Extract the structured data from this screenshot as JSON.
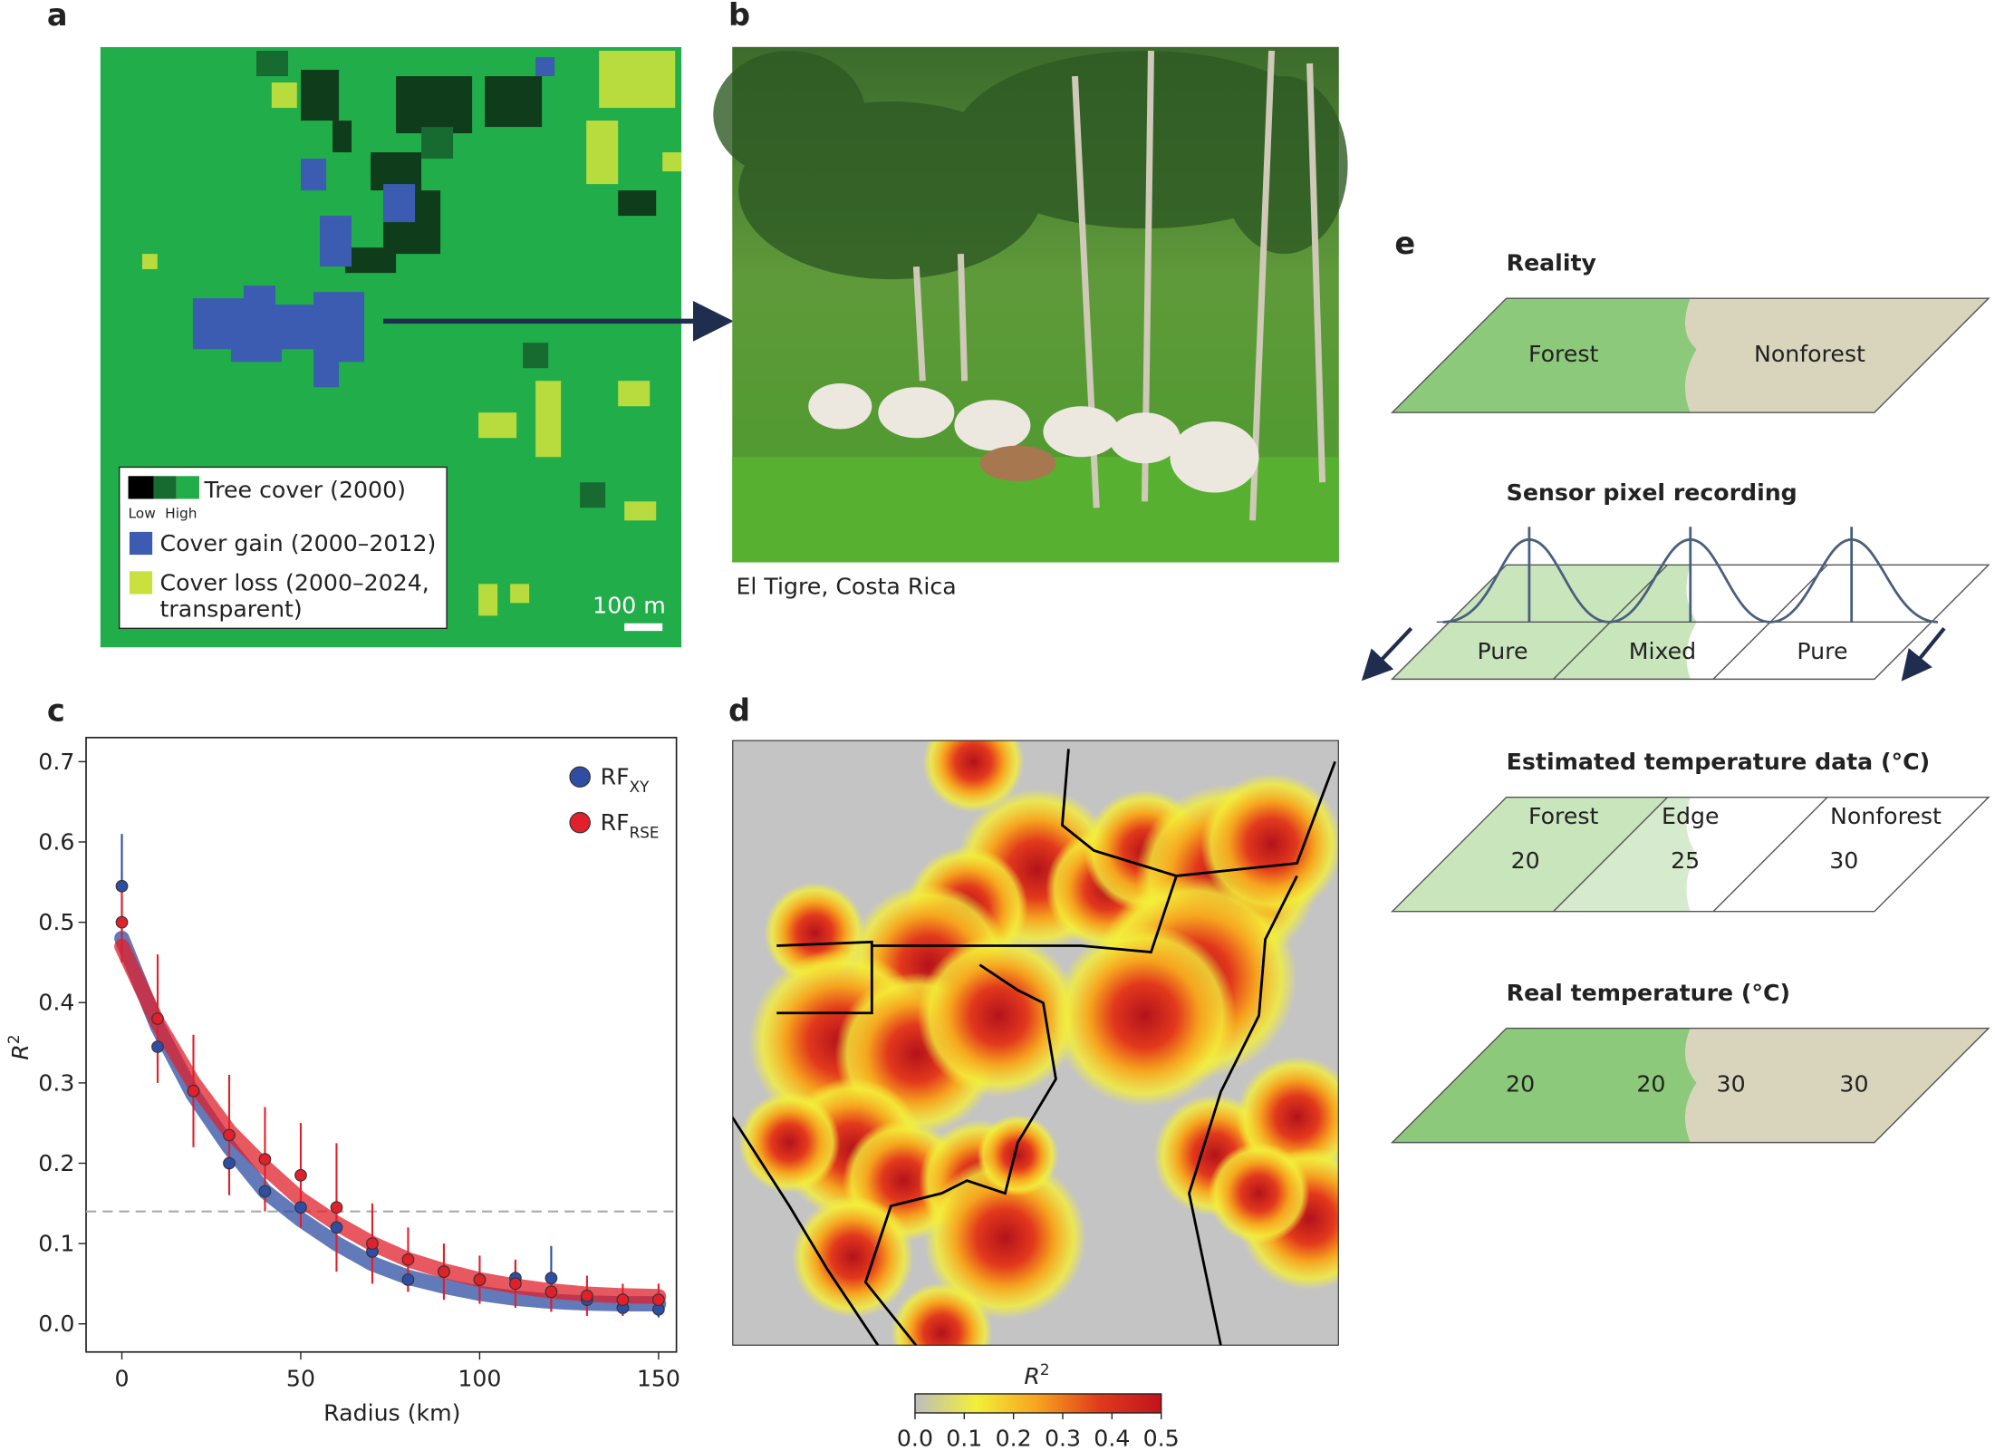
{
  "panel_labels": [
    "a",
    "b",
    "c",
    "d",
    "e"
  ],
  "panel_a": {
    "legend": {
      "tree_cover": "Tree cover (2000)",
      "low": "Low",
      "high": "High",
      "gain": "Cover gain (2000–2012)",
      "loss": [
        "Cover loss (2000–2024,",
        "transparent)"
      ]
    },
    "scale_bar": "100 m"
  },
  "panel_b": {
    "caption": "El Tigre, Costa Rica"
  },
  "chart_data": {
    "type": "scatter",
    "xlabel": "Radius (km)",
    "ylabel": {
      "text": "R",
      "superscript": "2"
    },
    "x": [
      0,
      10,
      20,
      30,
      40,
      50,
      60,
      70,
      80,
      90,
      100,
      110,
      120,
      130,
      140,
      150
    ],
    "series": [
      {
        "name": "RF",
        "subscript": "XY",
        "color": "#2f4ea3",
        "values": [
          0.545,
          0.345,
          0.29,
          0.2,
          0.165,
          0.145,
          0.12,
          0.09,
          0.055,
          0.065,
          0.055,
          0.057,
          0.057,
          0.03,
          0.02,
          0.018
        ],
        "errors": [
          0.065,
          0.02,
          0.02,
          0.015,
          0.015,
          0.015,
          0.02,
          0.015,
          0.015,
          0.01,
          0.01,
          0.02,
          0.04,
          0.01,
          0.01,
          0.01
        ],
        "fit": [
          0.48,
          0.37,
          0.285,
          0.22,
          0.165,
          0.13,
          0.1,
          0.075,
          0.058,
          0.047,
          0.038,
          0.032,
          0.028,
          0.026,
          0.025,
          0.025
        ]
      },
      {
        "name": "RF",
        "subscript": "RSE",
        "color": "#e0202b",
        "values": [
          0.5,
          0.38,
          0.29,
          0.235,
          0.205,
          0.185,
          0.145,
          0.1,
          0.08,
          0.065,
          0.055,
          0.05,
          0.04,
          0.035,
          0.03,
          0.03
        ],
        "errors": [
          0.05,
          0.08,
          0.07,
          0.075,
          0.065,
          0.065,
          0.08,
          0.05,
          0.04,
          0.035,
          0.03,
          0.03,
          0.025,
          0.025,
          0.02,
          0.02
        ],
        "fit": [
          0.47,
          0.375,
          0.3,
          0.24,
          0.195,
          0.155,
          0.125,
          0.1,
          0.08,
          0.066,
          0.055,
          0.047,
          0.041,
          0.037,
          0.035,
          0.034
        ]
      }
    ],
    "xlim": [
      -10,
      155
    ],
    "ylim": [
      -0.035,
      0.73
    ],
    "xticks": [
      0,
      50,
      100,
      150
    ],
    "yticks": [
      {
        "value": 0,
        "label": "0.0"
      },
      {
        "value": 0.1,
        "label": "0.1"
      },
      {
        "value": 0.2,
        "label": "0.2"
      },
      {
        "value": 0.3,
        "label": "0.3"
      },
      {
        "value": 0.4,
        "label": "0.4"
      },
      {
        "value": 0.5,
        "label": "0.5"
      },
      {
        "value": 0.6,
        "label": "0.6"
      },
      {
        "value": 0.7,
        "label": "0.7"
      }
    ],
    "reference_line": 0.14,
    "legend": "upper right"
  },
  "panel_d": {
    "colorbar": {
      "label": "R",
      "superscript": "2",
      "lim": [
        0,
        0.5
      ],
      "colors": [
        "#bdbdbd",
        "#f3ef3a",
        "#f6a21e",
        "#e03a1c",
        "#c0141c"
      ],
      "ticks": [
        {
          "value": 0,
          "label": "0.0"
        },
        {
          "value": 0.1,
          "label": "0.1"
        },
        {
          "value": 0.2,
          "label": "0.2"
        },
        {
          "value": 0.3,
          "label": "0.3"
        },
        {
          "value": 0.4,
          "label": "0.4"
        },
        {
          "value": 0.5,
          "label": "0.5"
        }
      ]
    }
  },
  "panel_e": {
    "reality": {
      "title": "Reality",
      "forest": "Forest",
      "nonforest": "Nonforest"
    },
    "sensor": {
      "title": "Sensor pixel recording",
      "pixels": [
        "Pure",
        "Mixed",
        "Pure"
      ]
    },
    "estimated": {
      "title": "Estimated temperature data (°C)",
      "zones": [
        "Forest",
        "Edge",
        "Nonforest"
      ],
      "values": [
        20,
        25,
        30
      ]
    },
    "real": {
      "title": "Real temperature (°C)",
      "values": [
        20,
        20,
        30,
        30
      ]
    }
  }
}
